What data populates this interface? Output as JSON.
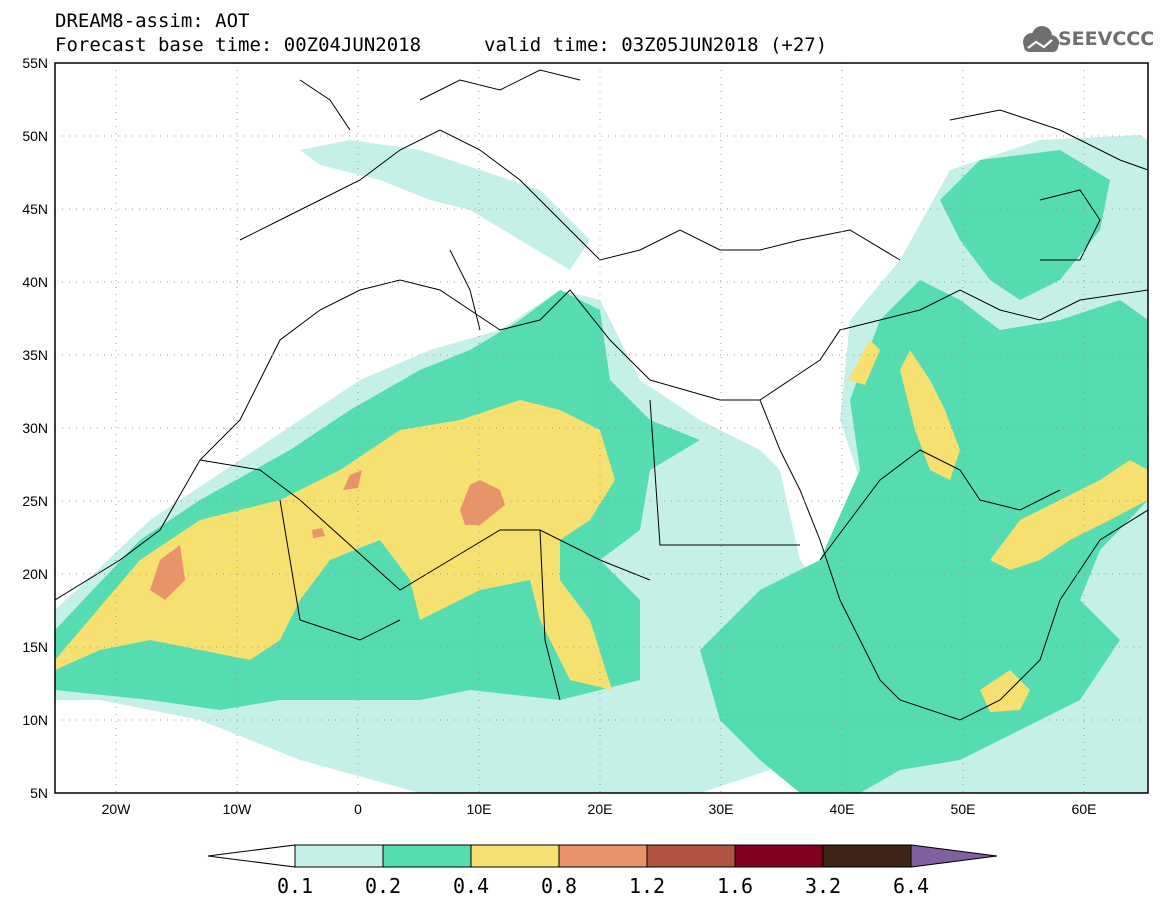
{
  "header": {
    "line1": "DREAM8-assim: AOT",
    "line2": "Forecast base time: 00Z04JUN2018",
    "line3": "valid time: 03Z05JUN2018 (+27)"
  },
  "logo": {
    "text": "SEEVCCC",
    "icon": "cloud-icon"
  },
  "map": {
    "lat_labels": [
      "55N",
      "50N",
      "45N",
      "40N",
      "35N",
      "30N",
      "25N",
      "20N",
      "15N",
      "10N",
      "5N"
    ],
    "lon_labels": [
      "20W",
      "10W",
      "0",
      "10E",
      "20E",
      "30E",
      "40E",
      "50E",
      "60E"
    ]
  },
  "colorbar": {
    "levels": [
      "0.1",
      "0.2",
      "0.4",
      "0.8",
      "1.2",
      "1.6",
      "3.2",
      "6.4"
    ],
    "colors": [
      "#ffffff",
      "#c5f0e8",
      "#55dcb0",
      "#f5e070",
      "#e8936a",
      "#b0533f",
      "#800020",
      "#3e2416",
      "#8060a0"
    ]
  }
}
